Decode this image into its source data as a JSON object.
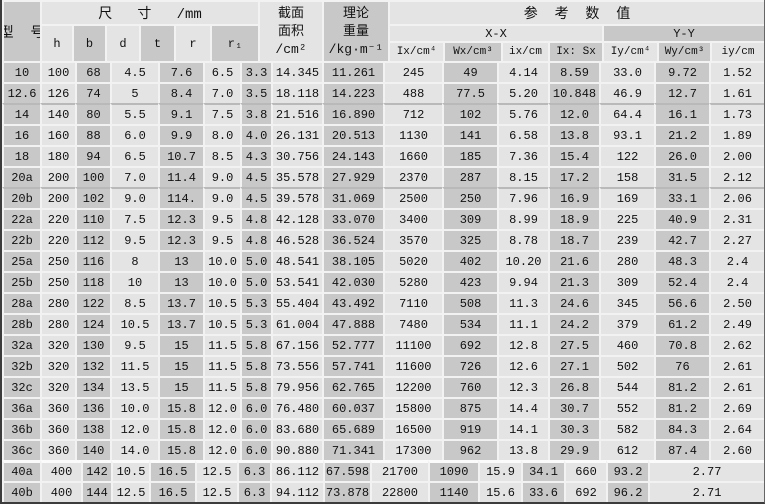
{
  "colors": {
    "cell_dark": "#c8c8c8",
    "cell_light": "#e4e4e4",
    "sep": "#f2f2f2",
    "border": "#3c3c3c",
    "text": "#111111"
  },
  "table": {
    "header": {
      "model_label": "型  号",
      "size_group_label": "尺   寸   /mm",
      "size_columns": [
        "h",
        "b",
        "d",
        "t",
        "r",
        "r₁"
      ],
      "area_label": "截面\n面积\n/cm²",
      "weight_label": "理论\n重量\n/kg·m⁻¹",
      "reference_group_label": "参  考  数  值",
      "xx_label": "X-X",
      "yy_label": "Y-Y",
      "reference_columns": [
        "Ix/cm⁴",
        "Wx/cm³",
        "ix/cm",
        "Ix: Sx",
        "Iy/cm⁴",
        "Wy/cm³",
        "iy/cm"
      ]
    },
    "rows": [
      [
        "10",
        "100",
        "68",
        "4.5",
        "7.6",
        "6.5",
        "3.3",
        "14.345",
        "11.261",
        "245",
        "49",
        "4.14",
        "8.59",
        "33.0",
        "9.72",
        "1.52"
      ],
      [
        "12.6",
        "126",
        "74",
        "5",
        "8.4",
        "7.0",
        "3.5",
        "18.118",
        "14.223",
        "488",
        "77.5",
        "5.20",
        "10.848",
        "46.9",
        "12.7",
        "1.61"
      ],
      [
        "14",
        "140",
        "80",
        "5.5",
        "9.1",
        "7.5",
        "3.8",
        "21.516",
        "16.890",
        "712",
        "102",
        "5.76",
        "12.0",
        "64.4",
        "16.1",
        "1.73"
      ],
      [
        "16",
        "160",
        "88",
        "6.0",
        "9.9",
        "8.0",
        "4.0",
        "26.131",
        "20.513",
        "1130",
        "141",
        "6.58",
        "13.8",
        "93.1",
        "21.2",
        "1.89"
      ],
      [
        "18",
        "180",
        "94",
        "6.5",
        "10.7",
        "8.5",
        "4.3",
        "30.756",
        "24.143",
        "1660",
        "185",
        "7.36",
        "15.4",
        "122",
        "26.0",
        "2.00"
      ],
      [
        "20a",
        "200",
        "100",
        "7.0",
        "11.4",
        "9.0",
        "4.5",
        "35.578",
        "27.929",
        "2370",
        "287",
        "8.15",
        "17.2",
        "158",
        "31.5",
        "2.12"
      ],
      [
        "20b",
        "200",
        "102",
        "9.0",
        "114.",
        "9.0",
        "4.5",
        "39.578",
        "31.069",
        "2500",
        "250",
        "7.96",
        "16.9",
        "169",
        "33.1",
        "2.06"
      ],
      [
        "22a",
        "220",
        "110",
        "7.5",
        "12.3",
        "9.5",
        "4.8",
        "42.128",
        "33.070",
        "3400",
        "309",
        "8.99",
        "18.9",
        "225",
        "40.9",
        "2.31"
      ],
      [
        "22b",
        "220",
        "112",
        "9.5",
        "12.3",
        "9.5",
        "4.8",
        "46.528",
        "36.524",
        "3570",
        "325",
        "8.78",
        "18.7",
        "239",
        "42.7",
        "2.27"
      ],
      [
        "25a",
        "250",
        "116",
        "8",
        "13",
        "10.0",
        "5.0",
        "48.541",
        "38.105",
        "5020",
        "402",
        "10.20",
        "21.6",
        "280",
        "48.3",
        "2.4"
      ],
      [
        "25b",
        "250",
        "118",
        "10",
        "13",
        "10.0",
        "5.0",
        "53.541",
        "42.030",
        "5280",
        "423",
        "9.94",
        "21.3",
        "309",
        "52.4",
        "2.4"
      ],
      [
        "28a",
        "280",
        "122",
        "8.5",
        "13.7",
        "10.5",
        "5.3",
        "55.404",
        "43.492",
        "7110",
        "508",
        "11.3",
        "24.6",
        "345",
        "56.6",
        "2.50"
      ],
      [
        "28b",
        "280",
        "124",
        "10.5",
        "13.7",
        "10.5",
        "5.3",
        "61.004",
        "47.888",
        "7480",
        "534",
        "11.1",
        "24.2",
        "379",
        "61.2",
        "2.49"
      ],
      [
        "32a",
        "320",
        "130",
        "9.5",
        "15",
        "11.5",
        "5.8",
        "67.156",
        "52.777",
        "11100",
        "692",
        "12.8",
        "27.5",
        "460",
        "70.8",
        "2.62"
      ],
      [
        "32b",
        "320",
        "132",
        "11.5",
        "15",
        "11.5",
        "5.8",
        "73.556",
        "57.741",
        "11600",
        "726",
        "12.6",
        "27.1",
        "502",
        "76",
        "2.61"
      ],
      [
        "32c",
        "320",
        "134",
        "13.5",
        "15",
        "11.5",
        "5.8",
        "79.956",
        "62.765",
        "12200",
        "760",
        "12.3",
        "26.8",
        "544",
        "81.2",
        "2.61"
      ],
      [
        "36a",
        "360",
        "136",
        "10.0",
        "15.8",
        "12.0",
        "6.0",
        "76.480",
        "60.037",
        "15800",
        "875",
        "14.4",
        "30.7",
        "552",
        "81.2",
        "2.69"
      ],
      [
        "36b",
        "360",
        "138",
        "12.0",
        "15.8",
        "12.0",
        "6.0",
        "83.680",
        "65.689",
        "16500",
        "919",
        "14.1",
        "30.3",
        "582",
        "84.3",
        "2.64"
      ],
      [
        "36c",
        "360",
        "140",
        "14.0",
        "15.8",
        "12.0",
        "6.0",
        "90.880",
        "71.341",
        "17300",
        "962",
        "13.8",
        "29.9",
        "612",
        "87.4",
        "2.60"
      ],
      [
        "40a",
        "400",
        "142",
        "10.5",
        "16.5",
        "12.5",
        "6.3",
        "86.112",
        "67.598",
        "21700",
        "1090",
        "15.9",
        "34.1",
        "660",
        "93.2",
        "2.77"
      ],
      [
        "40b",
        "400",
        "144",
        "12.5",
        "16.5",
        "12.5",
        "6.3",
        "94.112",
        "73.878",
        "22800",
        "1140",
        "15.6",
        "33.6",
        "692",
        "96.2",
        "2.71"
      ]
    ]
  }
}
